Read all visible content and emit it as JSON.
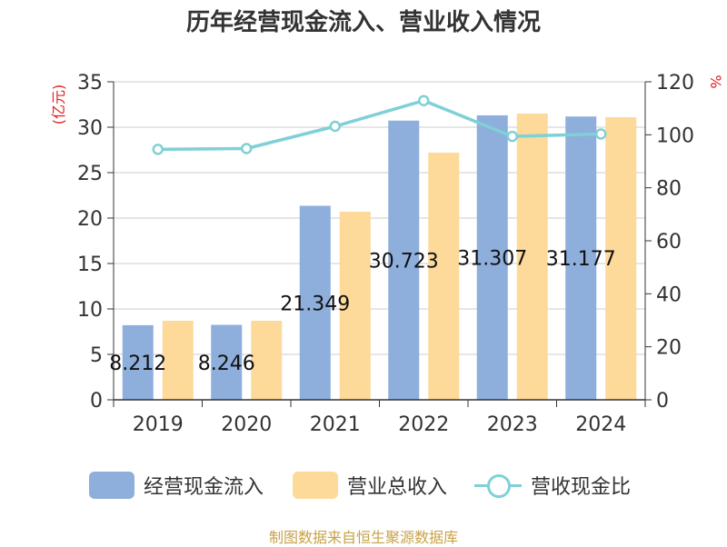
{
  "chart_data": {
    "type": "bar",
    "title": "历年经营现金流入、营业收入情况",
    "categories": [
      "2019",
      "2020",
      "2021",
      "2022",
      "2023",
      "2024"
    ],
    "left_axis": {
      "unit": "(亿元)",
      "ylim": [
        0,
        35
      ],
      "ticks": [
        0,
        5,
        10,
        15,
        20,
        25,
        30,
        35
      ]
    },
    "right_axis": {
      "unit": "%",
      "ylim": [
        0,
        120
      ],
      "ticks": [
        0,
        20,
        40,
        60,
        80,
        100,
        120
      ]
    },
    "series": [
      {
        "name": "经营现金流入",
        "type": "bar",
        "axis": "left",
        "color": "#8eaedb",
        "values": [
          8.212,
          8.246,
          21.349,
          30.723,
          31.307,
          31.177
        ],
        "labels": [
          "8.212",
          "8.246",
          "21.349",
          "30.723",
          "31.307",
          "31.177"
        ]
      },
      {
        "name": "营业总收入",
        "type": "bar",
        "axis": "left",
        "color": "#fdd99a",
        "values": [
          8.7,
          8.7,
          20.7,
          27.2,
          31.5,
          31.1
        ]
      },
      {
        "name": "营收现金比",
        "type": "line",
        "axis": "right",
        "color": "#7fd0d7",
        "values": [
          94.5,
          94.8,
          103.2,
          112.9,
          99.4,
          100.3
        ]
      }
    ],
    "grid": true,
    "legend_position": "bottom"
  },
  "source_text": "制图数据来自恒生聚源数据库"
}
